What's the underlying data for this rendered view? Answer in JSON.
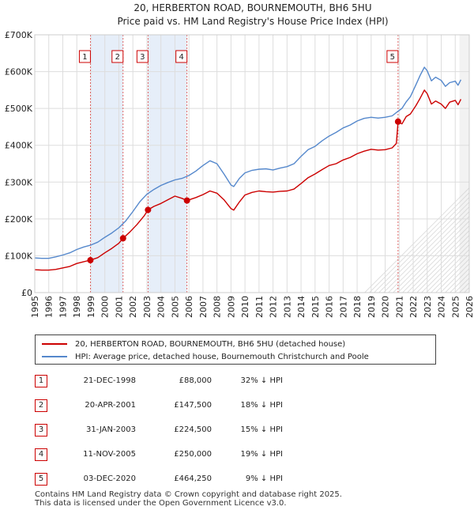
{
  "colors": {
    "property": "#cc0000",
    "hpi": "#5588cc",
    "grid": "#dddddd",
    "shade": "#e6eef9"
  },
  "chart_data": {
    "type": "line",
    "title": "20, HERBERTON ROAD, BOURNEMOUTH, BH6 5HU",
    "subtitle": "Price paid vs. HM Land Registry's House Price Index (HPI)",
    "xlim": [
      1995,
      2026
    ],
    "ylim": [
      0,
      700000
    ],
    "yticks": [
      0,
      100000,
      200000,
      300000,
      400000,
      500000,
      600000,
      700000
    ],
    "ytick_labels": [
      "£0",
      "£100K",
      "£200K",
      "£300K",
      "£400K",
      "£500K",
      "£600K",
      "£700K"
    ],
    "xticks": [
      1995,
      1996,
      1997,
      1998,
      1999,
      2000,
      2001,
      2002,
      2003,
      2004,
      2005,
      2006,
      2007,
      2008,
      2009,
      2010,
      2011,
      2012,
      2013,
      2014,
      2015,
      2016,
      2017,
      2018,
      2019,
      2020,
      2021,
      2022,
      2023,
      2024,
      2025,
      2026
    ],
    "xtick_labels": [
      "1995",
      "1996",
      "1997",
      "1998",
      "1999",
      "2000",
      "2001",
      "2002",
      "2003",
      "2004",
      "2005",
      "2006",
      "2007",
      "2008",
      "2009",
      "2010",
      "2011",
      "2012",
      "2013",
      "2014",
      "2015",
      "2016",
      "2017",
      "2018",
      "2019",
      "2020",
      "2021",
      "2022",
      "2023",
      "2024",
      "2025",
      "2026"
    ],
    "forecast_start": 2025.3,
    "series": [
      {
        "name": "20, HERBERTON ROAD, BOURNEMOUTH, BH6 5HU (detached house)",
        "color": "#cc0000",
        "x": [
          1995.0,
          1995.5,
          1996.0,
          1996.5,
          1997.0,
          1997.5,
          1998.0,
          1998.5,
          1998.97,
          1999.5,
          2000.0,
          2000.5,
          2001.0,
          2001.3,
          2001.8,
          2002.3,
          2002.8,
          2003.08,
          2003.5,
          2004.0,
          2004.5,
          2005.0,
          2005.5,
          2005.86,
          2006.5,
          2007.0,
          2007.5,
          2008.0,
          2008.5,
          2009.0,
          2009.2,
          2009.6,
          2010.0,
          2010.5,
          2011.0,
          2011.5,
          2012.0,
          2012.5,
          2013.0,
          2013.5,
          2014.0,
          2014.5,
          2015.0,
          2015.5,
          2016.0,
          2016.5,
          2017.0,
          2017.5,
          2018.0,
          2018.5,
          2019.0,
          2019.5,
          2020.0,
          2020.5,
          2020.8,
          2020.92,
          2021.2,
          2021.5,
          2021.8,
          2022.2,
          2022.5,
          2022.8,
          2023.0,
          2023.3,
          2023.6,
          2024.0,
          2024.3,
          2024.6,
          2025.0,
          2025.2,
          2025.4
        ],
        "y": [
          62000,
          61000,
          61000,
          63000,
          67000,
          71000,
          79000,
          84000,
          88000,
          95000,
          108000,
          120000,
          134000,
          147500,
          165000,
          185000,
          208000,
          224500,
          234000,
          242000,
          252000,
          262000,
          256000,
          250000,
          258000,
          266000,
          276000,
          270000,
          252000,
          228000,
          224000,
          246000,
          265000,
          272000,
          276000,
          274000,
          273000,
          275000,
          276000,
          281000,
          296000,
          312000,
          322000,
          334000,
          345000,
          350000,
          360000,
          367000,
          377000,
          384000,
          389000,
          387000,
          388000,
          393000,
          405000,
          464250,
          458000,
          478000,
          485000,
          508000,
          528000,
          550000,
          540000,
          512000,
          520000,
          512000,
          500000,
          517000,
          522000,
          510000,
          525000
        ]
      },
      {
        "name": "HPI: Average price, detached house, Bournemouth Christchurch and Poole",
        "color": "#5588cc",
        "x": [
          1995.0,
          1995.5,
          1996.0,
          1996.5,
          1997.0,
          1997.5,
          1998.0,
          1998.5,
          1999.0,
          1999.5,
          2000.0,
          2000.5,
          2001.0,
          2001.5,
          2002.0,
          2002.5,
          2003.0,
          2003.5,
          2004.0,
          2004.5,
          2005.0,
          2005.5,
          2006.0,
          2006.5,
          2007.0,
          2007.5,
          2008.0,
          2008.5,
          2009.0,
          2009.2,
          2009.6,
          2010.0,
          2010.5,
          2011.0,
          2011.5,
          2012.0,
          2012.5,
          2013.0,
          2013.5,
          2014.0,
          2014.5,
          2015.0,
          2015.5,
          2016.0,
          2016.5,
          2017.0,
          2017.5,
          2018.0,
          2018.5,
          2019.0,
          2019.5,
          2020.0,
          2020.5,
          2020.9,
          2021.2,
          2021.5,
          2021.8,
          2022.2,
          2022.5,
          2022.8,
          2023.0,
          2023.3,
          2023.6,
          2024.0,
          2024.3,
          2024.6,
          2025.0,
          2025.2,
          2025.4
        ],
        "y": [
          94000,
          93000,
          93000,
          97000,
          102000,
          108000,
          117000,
          124000,
          129000,
          137000,
          150000,
          162000,
          176000,
          195000,
          220000,
          247000,
          267000,
          280000,
          291000,
          299000,
          306000,
          310000,
          318000,
          330000,
          345000,
          358000,
          350000,
          322000,
          292000,
          288000,
          310000,
          325000,
          332000,
          335000,
          336000,
          333000,
          338000,
          342000,
          350000,
          370000,
          388000,
          397000,
          412000,
          425000,
          435000,
          447000,
          455000,
          466000,
          473000,
          476000,
          474000,
          476000,
          480000,
          492000,
          500000,
          518000,
          532000,
          565000,
          590000,
          612000,
          602000,
          575000,
          585000,
          576000,
          560000,
          570000,
          574000,
          563000,
          578000
        ]
      }
    ],
    "markers": [
      {
        "label": "1",
        "x": 1998.97,
        "y": 88000
      },
      {
        "label": "2",
        "x": 2001.3,
        "y": 147500
      },
      {
        "label": "3",
        "x": 2003.08,
        "y": 224500
      },
      {
        "label": "4",
        "x": 2005.86,
        "y": 250000
      },
      {
        "label": "5",
        "x": 2020.92,
        "y": 464250
      }
    ]
  },
  "legend": {
    "items": [
      {
        "label": "20, HERBERTON ROAD, BOURNEMOUTH, BH6 5HU (detached house)"
      },
      {
        "label": "HPI: Average price, detached house, Bournemouth Christchurch and Poole"
      }
    ]
  },
  "transactions": [
    {
      "num": "1",
      "date": "21-DEC-1998",
      "price": "£88,000",
      "hpi": "32% ↓ HPI"
    },
    {
      "num": "2",
      "date": "20-APR-2001",
      "price": "£147,500",
      "hpi": "18% ↓ HPI"
    },
    {
      "num": "3",
      "date": "31-JAN-2003",
      "price": "£224,500",
      "hpi": "15% ↓ HPI"
    },
    {
      "num": "4",
      "date": "11-NOV-2005",
      "price": "£250,000",
      "hpi": "19% ↓ HPI"
    },
    {
      "num": "5",
      "date": "03-DEC-2020",
      "price": "£464,250",
      "hpi": "9% ↓ HPI"
    }
  ],
  "footer": {
    "line1": "Contains HM Land Registry data © Crown copyright and database right 2025.",
    "line2": "This data is licensed under the Open Government Licence v3.0."
  }
}
